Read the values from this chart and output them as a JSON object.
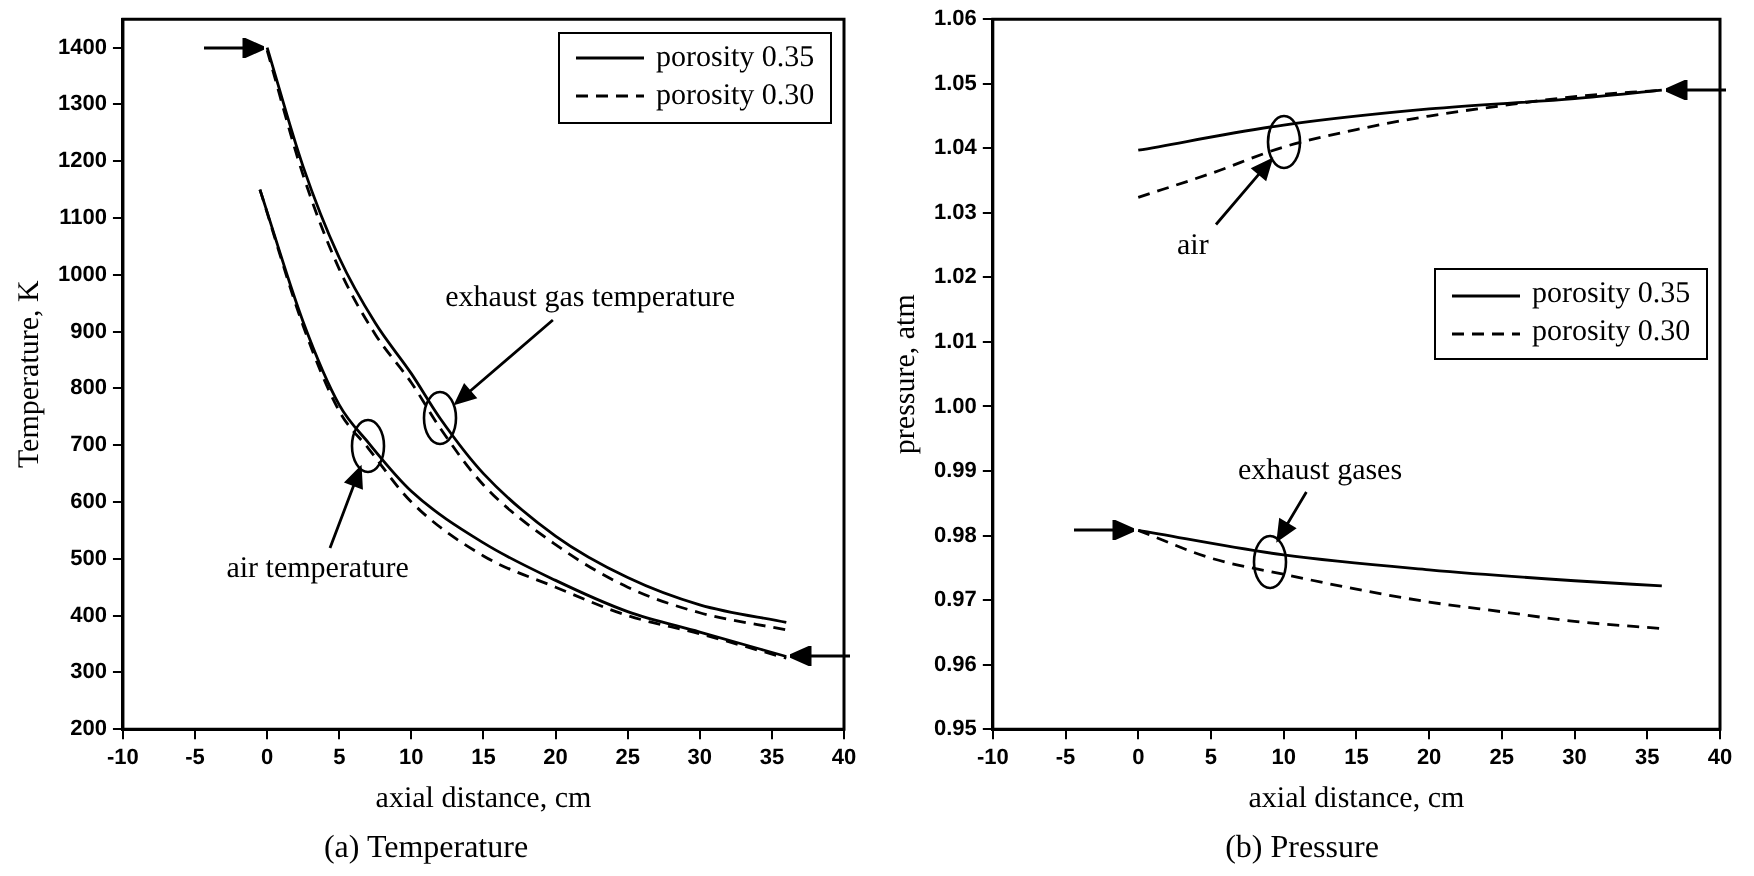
{
  "chart_data": [
    {
      "type": "line",
      "title": "(a) Temperature",
      "xlabel": "axial distance, cm",
      "ylabel": "Temperature, K",
      "xlim": [
        -10,
        40
      ],
      "xticks": [
        -10,
        -5,
        0,
        5,
        10,
        15,
        20,
        25,
        30,
        35,
        40
      ],
      "ylim": [
        200,
        1450
      ],
      "yticks": [
        200,
        300,
        400,
        500,
        600,
        700,
        800,
        900,
        1000,
        1100,
        1200,
        1300,
        1400
      ],
      "grid": false,
      "legend": "top right",
      "marker": "none",
      "series": [
        {
          "name": "porosity 0.35",
          "color": "#000000",
          "line_style": "solid",
          "x": [
            0,
            2.5,
            5,
            7.5,
            10,
            12,
            15,
            20,
            25,
            30,
            36
          ],
          "values": [
            1400,
            1190,
            1030,
            915,
            826,
            747,
            650,
            540,
            467,
            419,
            388
          ]
        },
        {
          "name": "porosity 0.30",
          "color": "#000000",
          "line_style": "dashed",
          "x": [
            0,
            2.5,
            5,
            7.5,
            10,
            12,
            15,
            20,
            25,
            30,
            36
          ],
          "values": [
            1395,
            1175,
            1010,
            895,
            810,
            730,
            630,
            525,
            450,
            405,
            375
          ]
        },
        {
          "color": "#000000",
          "line_style": "solid",
          "x": [
            -0.5,
            2.5,
            5,
            7,
            10,
            15,
            20,
            25,
            30,
            36
          ],
          "values": [
            1150,
            917,
            771,
            705,
            619,
            528,
            462,
            407,
            371,
            328
          ]
        },
        {
          "color": "#000000",
          "line_style": "dashed",
          "x": [
            -0.5,
            2.5,
            5,
            7,
            10,
            15,
            20,
            25,
            30,
            36
          ],
          "values": [
            1150,
            910,
            760,
            695,
            600,
            505,
            450,
            400,
            368,
            325
          ]
        }
      ],
      "annotations": [
        "exhaust gas temperature",
        "air temperature"
      ]
    },
    {
      "type": "line",
      "title": "(b) Pressure",
      "xlabel": "axial distance, cm",
      "ylabel": "pressure, atm",
      "xlim": [
        -10,
        40
      ],
      "xticks": [
        -10,
        -5,
        0,
        5,
        10,
        15,
        20,
        25,
        30,
        35,
        40
      ],
      "ylim": [
        0.95,
        1.06
      ],
      "yticks": [
        0.95,
        0.96,
        0.97,
        0.98,
        0.99,
        {
          "value": 1,
          "label": "1.00"
        },
        1.01,
        1.02,
        1.03,
        1.04,
        1.05,
        1.06
      ],
      "grid": false,
      "legend": "right",
      "marker": "none",
      "series": [
        {
          "name": "porosity 0.35",
          "color": "#000000",
          "line_style": "solid",
          "x": [
            0,
            10,
            20,
            30,
            36
          ],
          "values": [
            0.9808,
            0.977,
            0.9747,
            0.973,
            0.9722
          ]
        },
        {
          "name": "porosity 0.30",
          "color": "#000000",
          "line_style": "dashed",
          "x": [
            0,
            5,
            10,
            15,
            20,
            25,
            30,
            36
          ],
          "values": [
            0.9808,
            0.9765,
            0.974,
            0.9717,
            0.9697,
            0.9682,
            0.9667,
            0.9656
          ]
        },
        {
          "color": "#000000",
          "line_style": "solid",
          "x": [
            0,
            10,
            20,
            30,
            36
          ],
          "values": [
            1.0397,
            1.0436,
            1.0461,
            1.0477,
            1.049
          ]
        },
        {
          "color": "#000000",
          "line_style": "dashed",
          "x": [
            0,
            5,
            10,
            15,
            20,
            25,
            30,
            36
          ],
          "values": [
            1.0324,
            1.0361,
            1.0402,
            1.0429,
            1.045,
            1.0466,
            1.048,
            1.049
          ]
        }
      ],
      "annotations": [
        "exhaust gases",
        "air"
      ]
    }
  ]
}
